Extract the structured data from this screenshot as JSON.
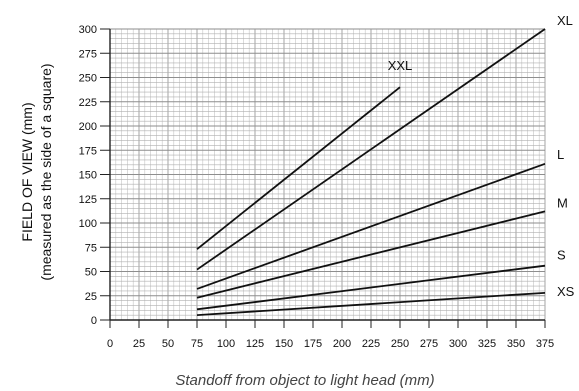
{
  "chart_data": {
    "type": "line",
    "xlabel": "Standoff from object to light head (mm)",
    "ylabel": "FIELD OF VIEW (mm)",
    "ylabel_sub": "(measured as the side of a square)",
    "xlim": [
      0,
      375
    ],
    "ylim": [
      0,
      300
    ],
    "x_ticks": [
      0,
      25,
      50,
      75,
      100,
      125,
      150,
      175,
      200,
      225,
      250,
      275,
      300,
      325,
      350,
      375
    ],
    "y_ticks": [
      0,
      25,
      50,
      75,
      100,
      125,
      150,
      175,
      200,
      225,
      250,
      275,
      300
    ],
    "x_tick_labels": [
      "0",
      "25",
      "50",
      "75",
      "100",
      "125",
      "150",
      "175",
      "200",
      "225",
      "250",
      "275",
      "300",
      "325",
      "350",
      "375"
    ],
    "y_tick_labels": [
      "0",
      "25",
      "50",
      "75",
      "100",
      "125",
      "150",
      "175",
      "200",
      "225",
      "250",
      "275",
      "300"
    ],
    "grid": true,
    "series": [
      {
        "name": "XXL",
        "x": [
          75,
          250
        ],
        "y": [
          73,
          240
        ]
      },
      {
        "name": "XL",
        "x": [
          75,
          375
        ],
        "y": [
          52,
          300
        ]
      },
      {
        "name": "L",
        "x": [
          75,
          375
        ],
        "y": [
          32,
          161
        ]
      },
      {
        "name": "M",
        "x": [
          75,
          375
        ],
        "y": [
          23,
          112
        ]
      },
      {
        "name": "S",
        "x": [
          75,
          375
        ],
        "y": [
          11,
          56
        ]
      },
      {
        "name": "XS",
        "x": [
          75,
          375
        ],
        "y": [
          5,
          28
        ]
      }
    ]
  }
}
